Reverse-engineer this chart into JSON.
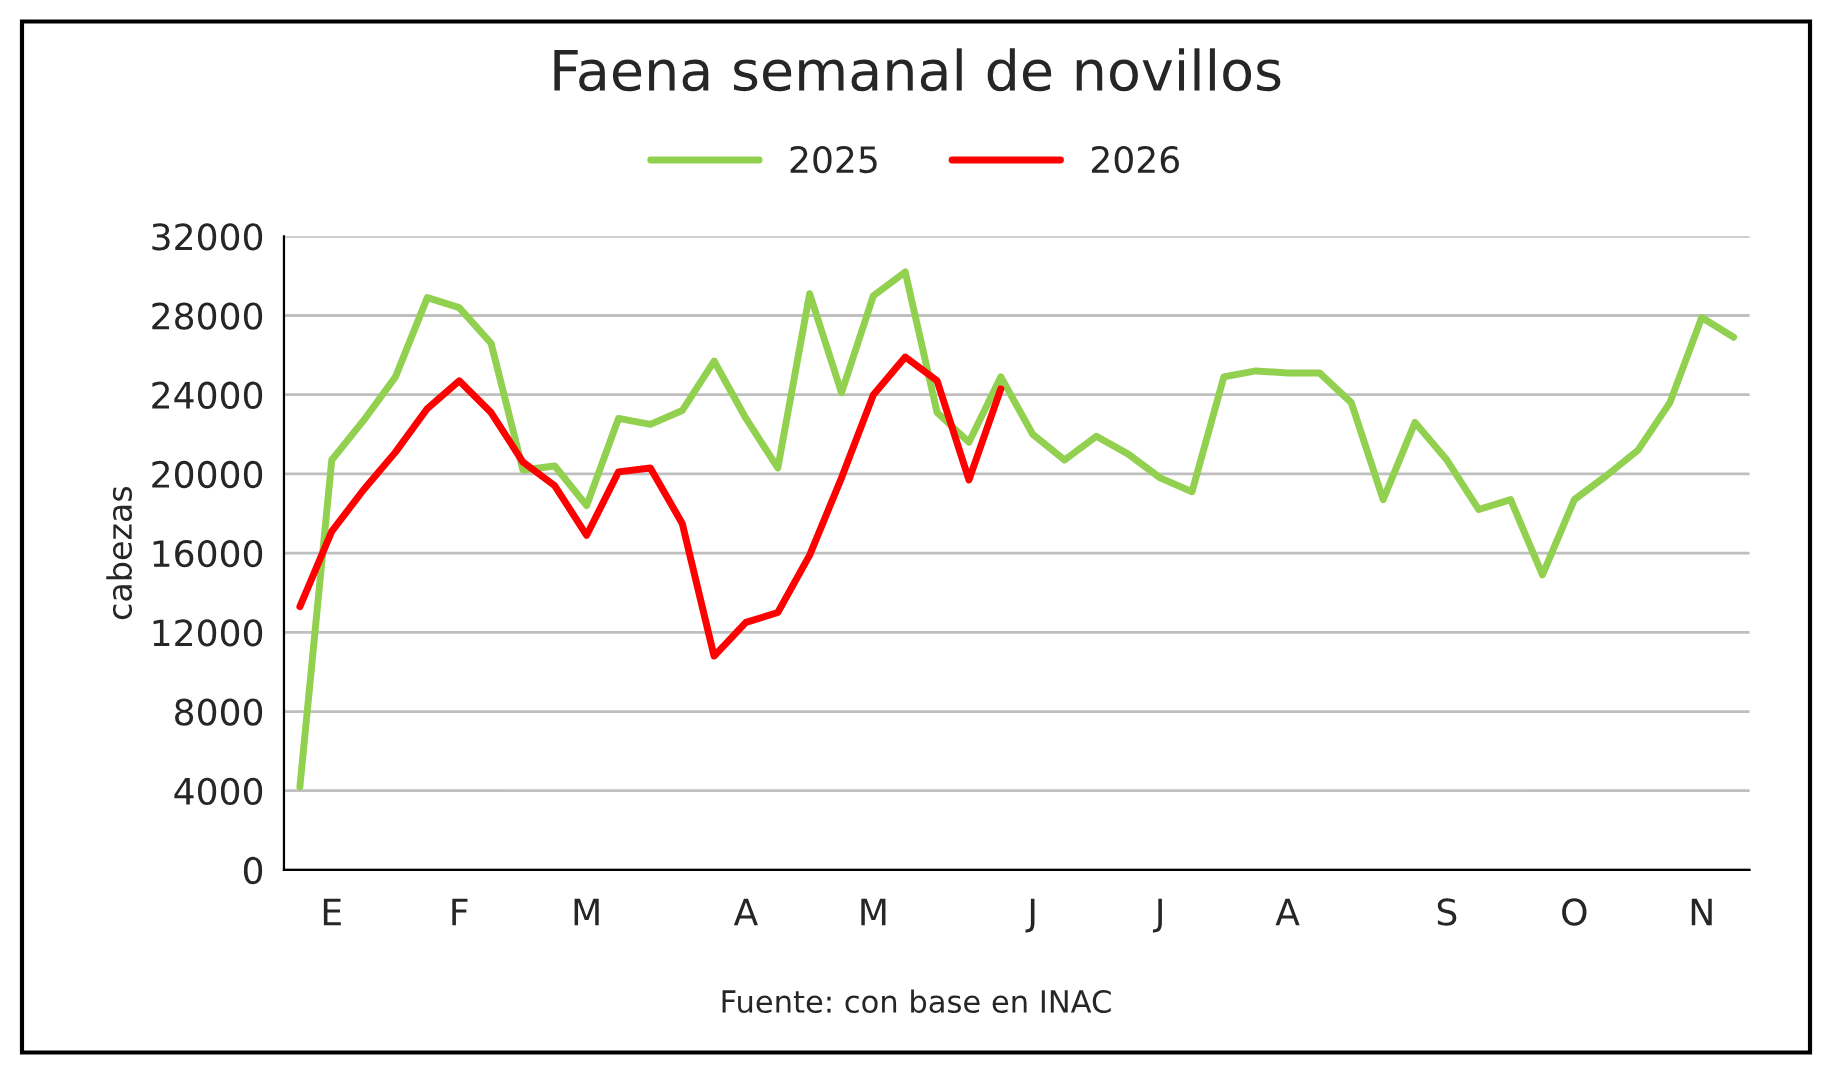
{
  "chart_data": {
    "type": "line",
    "title": "Faena semanal de novillos",
    "ylabel": "cabezas",
    "categories": [
      null,
      "E",
      null,
      null,
      null,
      "F",
      null,
      null,
      null,
      "M",
      null,
      null,
      null,
      null,
      "A",
      null,
      null,
      null,
      "M",
      null,
      null,
      null,
      null,
      "J",
      null,
      null,
      null,
      "J",
      null,
      null,
      null,
      "A",
      null,
      null,
      null,
      null,
      "S",
      null,
      null,
      null,
      "O",
      null,
      null,
      null,
      "N",
      null
    ],
    "series": [
      {
        "name": "2025",
        "color": "#92d050",
        "values": [
          4200,
          20700,
          22700,
          24900,
          28900,
          28400,
          26600,
          20200,
          20400,
          18400,
          22800,
          22500,
          23200,
          25700,
          22800,
          20300,
          29100,
          24100,
          29000,
          30200,
          23100,
          21600,
          24900,
          22000,
          20700,
          21900,
          21000,
          19800,
          19100,
          24900,
          25200,
          25100,
          25100,
          23600,
          18700,
          22600,
          20700,
          18200,
          18700,
          14900,
          18700,
          19900,
          21200,
          23600,
          27900,
          26900
        ]
      },
      {
        "name": "2026",
        "color": "#ff0000",
        "values": [
          13300,
          17100,
          19200,
          21100,
          23300,
          24700,
          23100,
          20600,
          19400,
          16900,
          20100,
          20300,
          17500,
          10800,
          12500,
          13000,
          15900,
          19800,
          24000,
          25900,
          24700,
          19700,
          24300,
          null,
          null,
          null,
          null,
          null,
          null,
          null,
          null,
          null,
          null,
          null,
          null,
          null,
          null,
          null,
          null,
          null,
          null,
          null,
          null,
          null,
          null,
          null
        ]
      }
    ],
    "ylim": [
      0,
      32000
    ],
    "yticks": [
      0,
      4000,
      8000,
      12000,
      16000,
      20000,
      24000,
      28000,
      32000
    ],
    "grid": "y",
    "legend": "top",
    "marker": "none",
    "line_style": "solid",
    "annotations": [
      "Fuente: con base en INAC"
    ]
  }
}
